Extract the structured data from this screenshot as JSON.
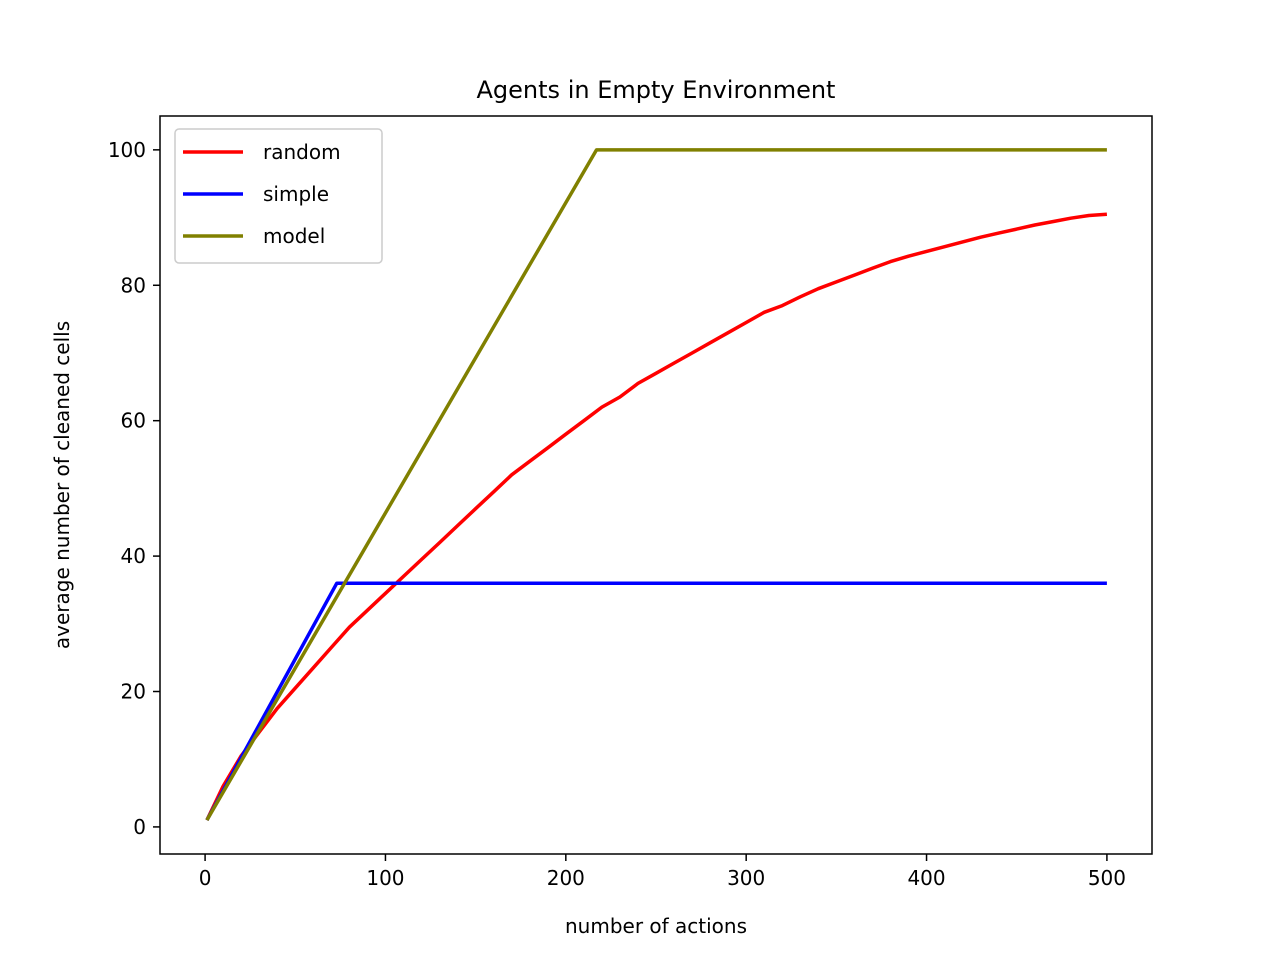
{
  "chart_data": {
    "type": "line",
    "title": "Agents in Empty Environment",
    "xlabel": "number of actions",
    "ylabel": "average number of cleaned cells",
    "xlim": [
      -25,
      525
    ],
    "ylim": [
      -4,
      105
    ],
    "xticks": [
      0,
      100,
      200,
      300,
      400,
      500
    ],
    "yticks": [
      0,
      20,
      40,
      60,
      80,
      100
    ],
    "grid": false,
    "legend": "top-left",
    "series": [
      {
        "name": "random",
        "color": "#ff0000",
        "x": [
          1,
          10,
          20,
          30,
          40,
          50,
          60,
          70,
          80,
          90,
          100,
          110,
          120,
          130,
          140,
          150,
          160,
          170,
          180,
          190,
          200,
          210,
          220,
          230,
          240,
          250,
          260,
          270,
          280,
          290,
          300,
          310,
          320,
          330,
          340,
          350,
          360,
          370,
          380,
          390,
          400,
          410,
          420,
          430,
          440,
          450,
          460,
          470,
          480,
          490,
          500
        ],
        "y": [
          1,
          6,
          10.5,
          14,
          17.5,
          20.5,
          23.5,
          26.5,
          29.5,
          32,
          34.5,
          37,
          39.5,
          42,
          44.5,
          47,
          49.5,
          52,
          54,
          56,
          58,
          60,
          62,
          63.5,
          65.5,
          67,
          68.5,
          70,
          71.5,
          73,
          74.5,
          76,
          77,
          78.3,
          79.5,
          80.5,
          81.5,
          82.5,
          83.5,
          84.3,
          85,
          85.7,
          86.4,
          87.1,
          87.7,
          88.3,
          88.9,
          89.4,
          89.9,
          90.3,
          90.5
        ]
      },
      {
        "name": "simple",
        "color": "#0000ff",
        "x": [
          1,
          73,
          500
        ],
        "y": [
          1,
          36,
          36
        ]
      },
      {
        "name": "model",
        "color": "#808000",
        "x": [
          1,
          217,
          500
        ],
        "y": [
          1,
          100,
          100
        ]
      }
    ]
  }
}
